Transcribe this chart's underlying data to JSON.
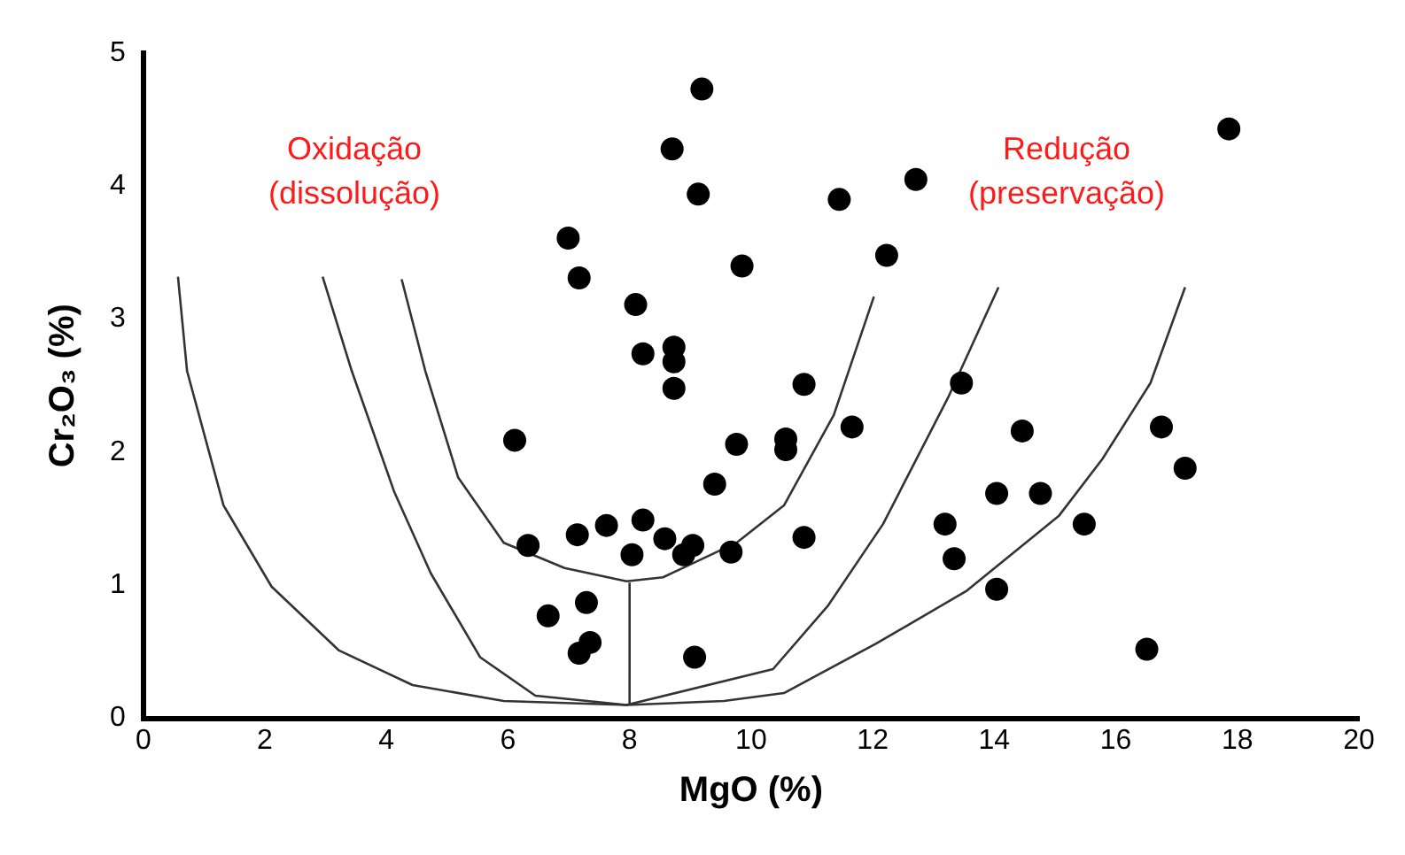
{
  "chart_data": {
    "type": "scatter",
    "xlabel": "MgO (%)",
    "ylabel": "Cr₂O₃ (%)",
    "xlim": [
      0,
      20
    ],
    "ylim": [
      0,
      5
    ],
    "xticks": [
      0,
      2,
      4,
      6,
      8,
      10,
      12,
      14,
      16,
      18,
      20
    ],
    "yticks": [
      0,
      1,
      2,
      3,
      4,
      5
    ],
    "grid": false,
    "legend": false,
    "annotations": [
      "Oxidação\n(dissolução)",
      "Redução\n(preservação)"
    ],
    "series": [
      {
        "color": "#000000",
        "marker": "circle",
        "x": [
          9.19,
          8.7,
          9.13,
          6.99,
          7.17,
          8.1,
          9.85,
          8.22,
          8.73,
          8.73,
          8.73,
          6.11,
          9.76,
          9.4,
          6.33,
          7.14,
          7.62,
          8.22,
          8.58,
          8.04,
          8.89,
          9.04,
          9.67,
          6.66,
          7.29,
          7.17,
          7.35,
          9.07,
          10.87,
          10.57,
          10.57,
          11.66,
          10.87,
          11.45,
          12.71,
          12.23,
          13.46,
          14.46,
          14.04,
          14.76,
          13.19,
          13.34,
          14.04,
          15.48,
          16.75,
          17.14,
          16.51,
          17.86
        ],
        "values": [
          4.73,
          4.28,
          3.94,
          3.61,
          3.31,
          3.11,
          3.4,
          2.74,
          2.79,
          2.68,
          2.48,
          2.09,
          2.06,
          1.76,
          1.3,
          1.38,
          1.45,
          1.49,
          1.35,
          1.23,
          1.23,
          1.3,
          1.25,
          0.77,
          0.87,
          0.49,
          0.57,
          0.46,
          2.51,
          2.1,
          2.02,
          2.19,
          1.36,
          3.9,
          4.05,
          3.48,
          2.52,
          2.16,
          1.69,
          1.69,
          1.46,
          1.2,
          0.97,
          1.46,
          2.19,
          1.88,
          0.52,
          4.43
        ]
      },
      {
        "type": "line",
        "color": "#333333",
        "marker": "none",
        "x": [
          0.57,
          0.72,
          1.32,
          2.11,
          3.22,
          4.43,
          5.93,
          7.95,
          9.55,
          10.54,
          12.05,
          13.55,
          15.06,
          15.78,
          16.57,
          17.14
        ],
        "values": [
          3.32,
          2.61,
          1.6,
          0.99,
          0.51,
          0.25,
          0.13,
          0.1,
          0.13,
          0.19,
          0.56,
          0.96,
          1.52,
          1.95,
          2.52,
          3.24
        ]
      },
      {
        "type": "line",
        "color": "#333333",
        "marker": "none",
        "x": [
          2.95,
          3.43,
          4.13,
          4.73,
          5.54,
          6.45,
          7.95,
          10.36,
          11.27,
          12.17,
          13.25,
          14.07
        ],
        "values": [
          3.32,
          2.61,
          1.7,
          1.09,
          0.46,
          0.17,
          0.1,
          0.37,
          0.85,
          1.46,
          2.42,
          3.24
        ]
      },
      {
        "type": "line",
        "color": "#333333",
        "marker": "none",
        "x": [
          4.25,
          4.64,
          5.18,
          5.93,
          6.93,
          7.95,
          8.55,
          9.76,
          10.54,
          11.36,
          12.02
        ],
        "values": [
          3.3,
          2.61,
          1.81,
          1.32,
          1.13,
          1.03,
          1.06,
          1.32,
          1.6,
          2.28,
          3.17
        ]
      },
      {
        "type": "line",
        "color": "#333333",
        "marker": "none",
        "x": [
          8,
          8
        ],
        "values": [
          0.1,
          1.02
        ]
      }
    ]
  }
}
